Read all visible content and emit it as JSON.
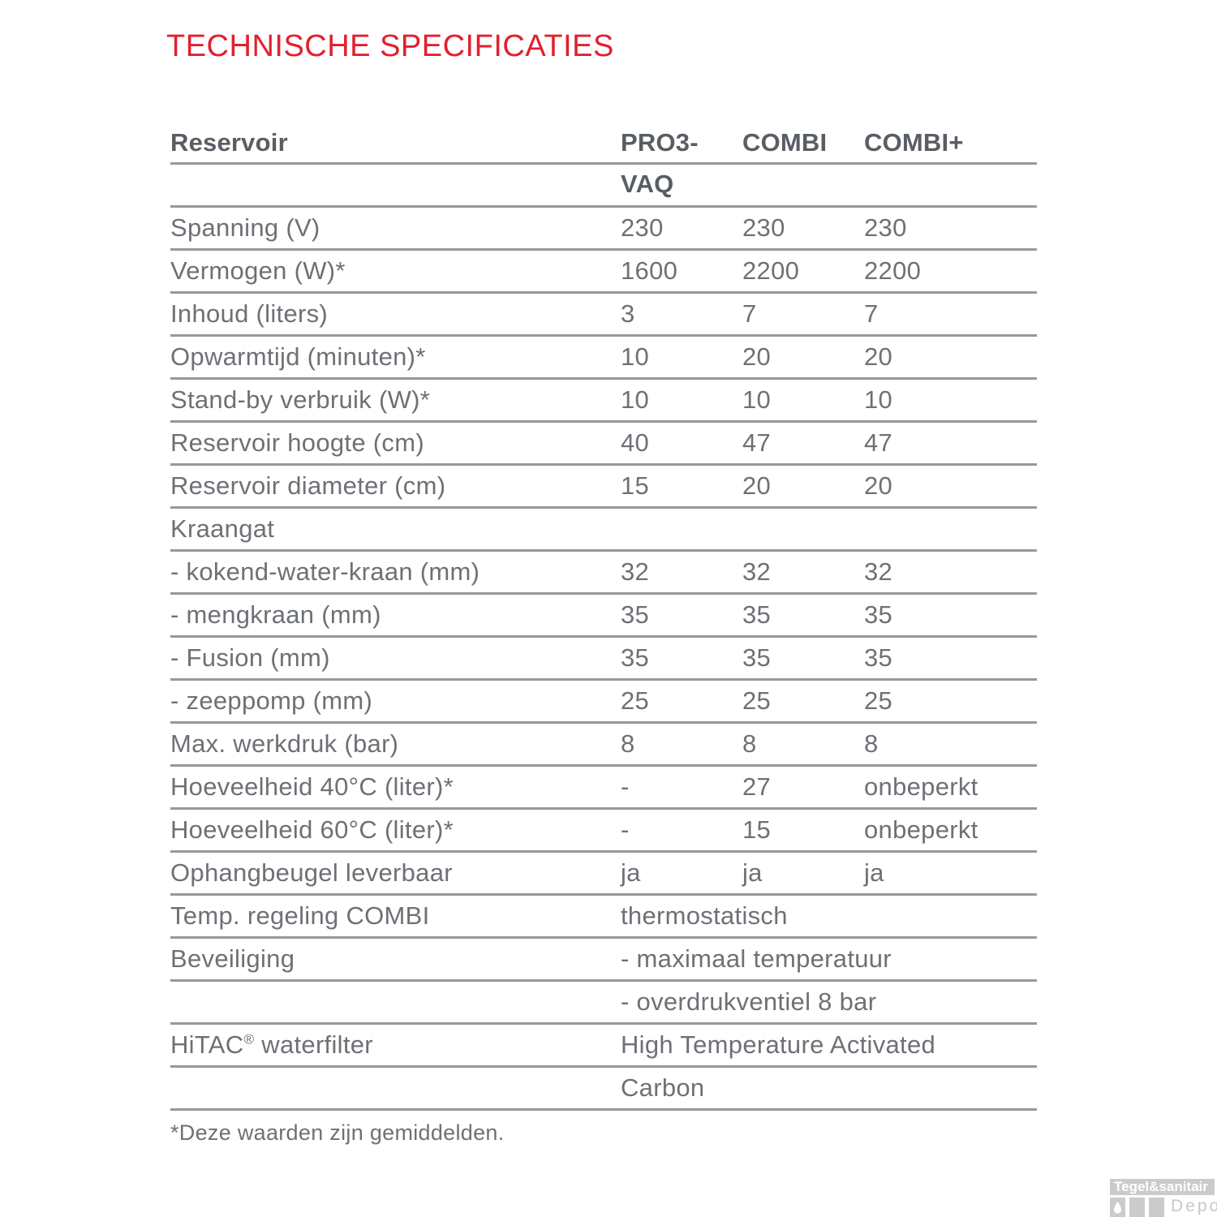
{
  "title": "TECHNISCHE SPECIFICATIES",
  "colors": {
    "title_red": "#e2202e",
    "body_text": "#6d7176",
    "header_text": "#595e64",
    "rule_gray": "#97989b",
    "watermark_gray": "#c9cbcd"
  },
  "table": {
    "header": {
      "col0": "Reservoir",
      "col1": "PRO3-",
      "col1_line2": "VAQ",
      "col2": "COMBI",
      "col3": "COMBI+"
    },
    "rows": [
      {
        "label": "Spanning (V)",
        "values": [
          "230",
          "230",
          "230"
        ]
      },
      {
        "label": "Vermogen (W)*",
        "values": [
          "1600",
          "2200",
          "2200"
        ]
      },
      {
        "label": "Inhoud (liters)",
        "values": [
          "3",
          "7",
          "7"
        ]
      },
      {
        "label": "Opwarmtijd (minuten)*",
        "values": [
          "10",
          "20",
          "20"
        ]
      },
      {
        "label": "Stand-by verbruik (W)*",
        "values": [
          "10",
          "10",
          "10"
        ]
      },
      {
        "label": "Reservoir hoogte (cm)",
        "values": [
          "40",
          "47",
          "47"
        ]
      },
      {
        "label": "Reservoir diameter (cm)",
        "values": [
          "15",
          "20",
          "20"
        ]
      },
      {
        "label": "Kraangat",
        "values": [
          "",
          "",
          ""
        ]
      },
      {
        "label": "- kokend-water-kraan (mm)",
        "values": [
          "32",
          "32",
          "32"
        ]
      },
      {
        "label": "- mengkraan (mm)",
        "values": [
          "35",
          "35",
          "35"
        ]
      },
      {
        "label": "- Fusion (mm)",
        "values": [
          "35",
          "35",
          "35"
        ]
      },
      {
        "label": "- zeeppomp (mm)",
        "values": [
          "25",
          "25",
          "25"
        ]
      },
      {
        "label": "Max. werkdruk (bar)",
        "values": [
          "8",
          "8",
          "8"
        ]
      },
      {
        "label": "Hoeveelheid 40°C (liter)*",
        "values": [
          "-",
          "27",
          "onbeperkt"
        ]
      },
      {
        "label": "Hoeveelheid 60°C (liter)*",
        "values": [
          "-",
          "15",
          "onbeperkt"
        ]
      },
      {
        "label": "Ophangbeugel leverbaar",
        "values": [
          "ja",
          "ja",
          "ja"
        ]
      },
      {
        "label": "Temp. regeling COMBI",
        "span_value": "thermostatisch"
      },
      {
        "label": "Beveiliging",
        "span_value": "- maximaal temperatuur"
      },
      {
        "label": "",
        "span_value": "- overdrukventiel 8 bar"
      },
      {
        "label": "HiTAC® waterfilter",
        "span_value": "High Temperature Activated"
      },
      {
        "label": "",
        "span_value": "Carbon"
      }
    ]
  },
  "footnote": "*Deze waarden zijn gemiddelden.",
  "watermark": {
    "brand": "Tegel&sanitair",
    "sub": "Depot",
    "icon": "water-drop-icon"
  }
}
